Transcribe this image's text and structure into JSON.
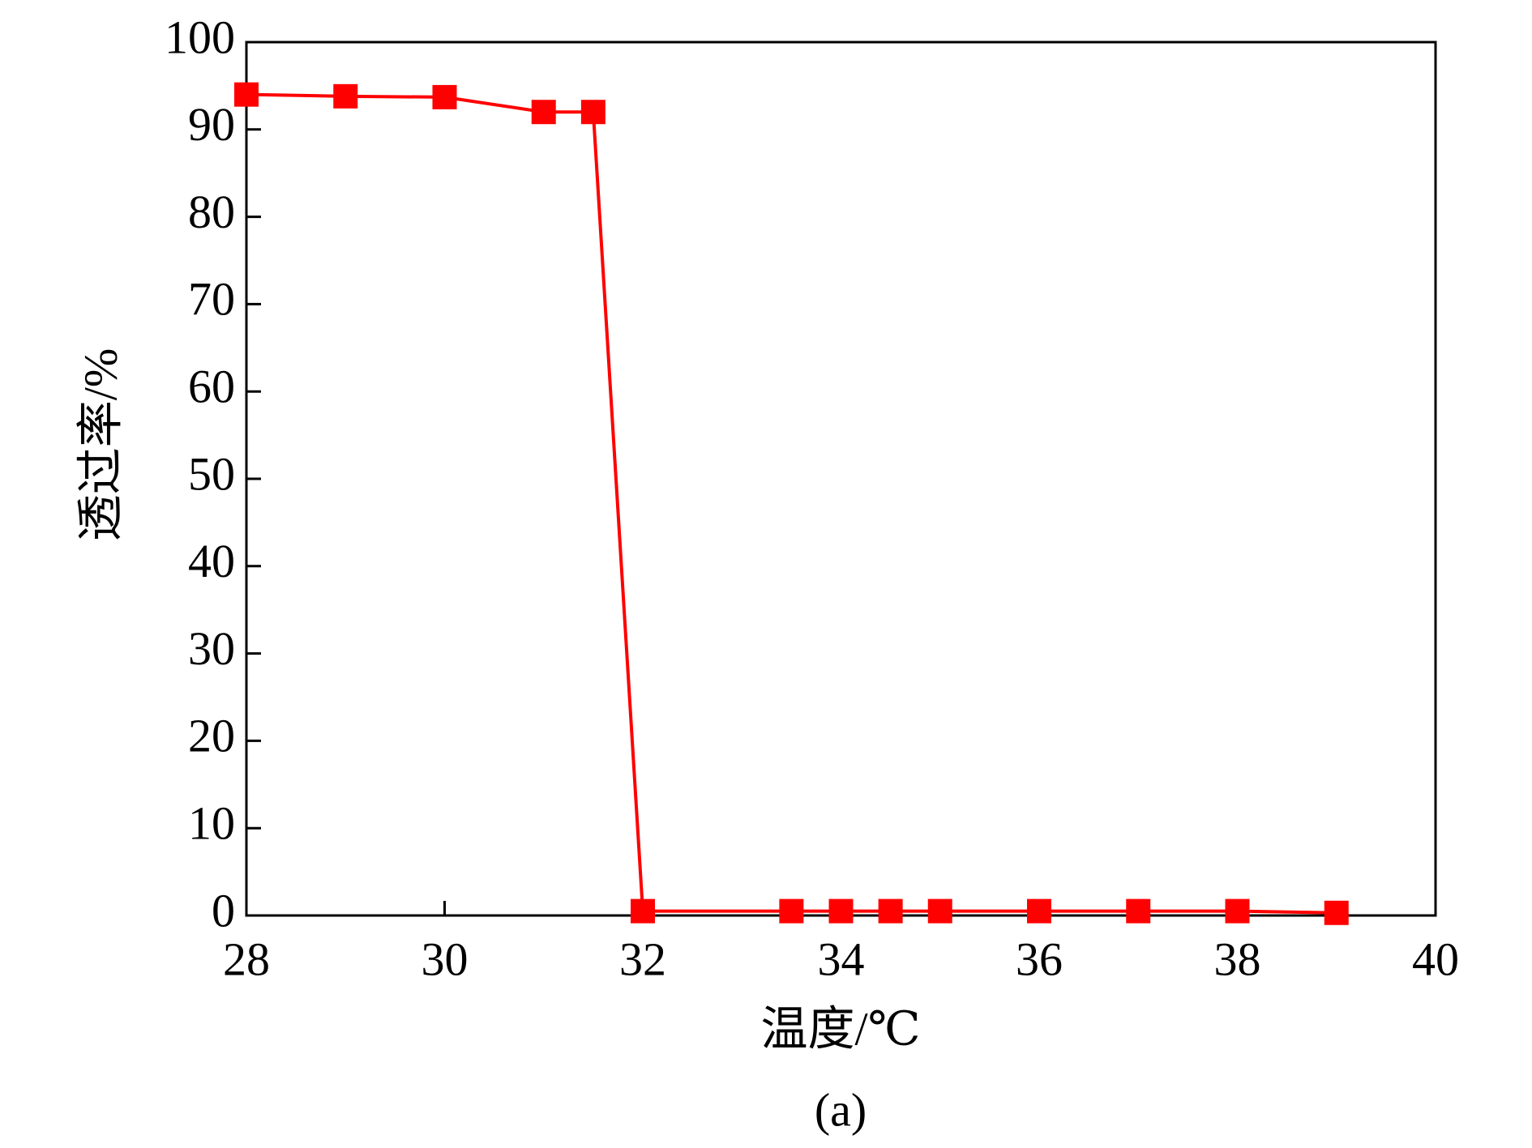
{
  "chart_data": {
    "type": "line",
    "xlabel": "温度/℃",
    "ylabel": "透过率/%",
    "caption": "(a)",
    "x": [
      28,
      29,
      30,
      31,
      31.5,
      32,
      33.5,
      34,
      34.5,
      35,
      36,
      37,
      38,
      39
    ],
    "series": [
      {
        "color": "#ff0000",
        "values": [
          94,
          93.8,
          93.7,
          92,
          92,
          0.5,
          0.5,
          0.5,
          0.5,
          0.5,
          0.5,
          0.5,
          0.5,
          0.3
        ]
      }
    ],
    "xlim": [
      28,
      40
    ],
    "xticks": [
      28,
      30,
      32,
      34,
      36,
      38,
      40
    ],
    "ylim": [
      0,
      100
    ],
    "yticks": [
      0,
      10,
      20,
      30,
      40,
      50,
      60,
      70,
      80,
      90,
      100
    ],
    "grid": false
  }
}
